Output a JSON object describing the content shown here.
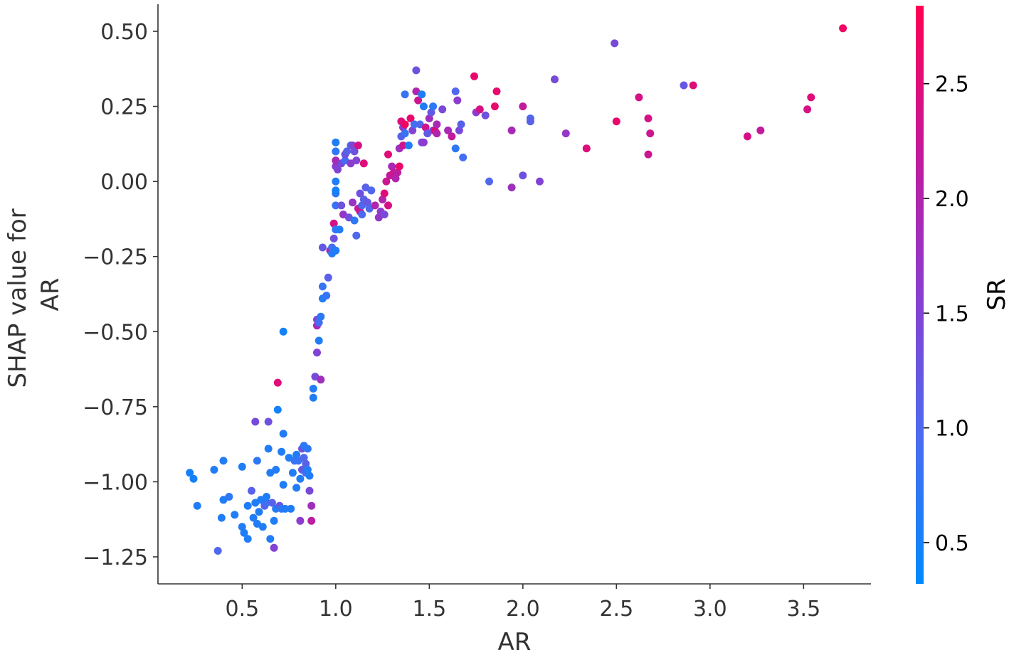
{
  "chart_data": {
    "type": "scatter",
    "xlabel": "AR",
    "ylabel": [
      "SHAP value for",
      "AR"
    ],
    "xlim": [
      0.05,
      3.86
    ],
    "ylim": [
      -1.34,
      0.59
    ],
    "xticks": [
      "0.5",
      "1.0",
      "1.5",
      "2.0",
      "2.5",
      "3.0",
      "3.5"
    ],
    "xtick_values": [
      0.5,
      1.0,
      1.5,
      2.0,
      2.5,
      3.0,
      3.5
    ],
    "yticks": [
      "0.50",
      "0.25",
      "0.00",
      "−0.25",
      "−0.50",
      "−0.75",
      "−1.00",
      "−1.25"
    ],
    "ytick_values": [
      0.5,
      0.25,
      0.0,
      -0.25,
      -0.5,
      -0.75,
      -1.0,
      -1.25
    ],
    "grid": false,
    "colorbar": {
      "label": "SR",
      "range": [
        0.32,
        2.84
      ],
      "ticks": [
        "0.5",
        "1.0",
        "1.5",
        "2.0",
        "2.5"
      ],
      "tick_values": [
        0.5,
        1.0,
        1.5,
        2.0,
        2.5
      ],
      "colors": [
        "#008afb",
        "#4a6cf0",
        "#8a3dd0",
        "#c4189a",
        "#ff0052"
      ]
    },
    "points": [
      [
        0.22,
        -0.97,
        0.5
      ],
      [
        0.24,
        -0.99,
        0.5
      ],
      [
        0.26,
        -1.08,
        0.6
      ],
      [
        0.35,
        -0.96,
        0.6
      ],
      [
        0.37,
        -1.23,
        1.0
      ],
      [
        0.39,
        -1.12,
        0.6
      ],
      [
        0.4,
        -0.93,
        0.6
      ],
      [
        0.4,
        -1.06,
        0.6
      ],
      [
        0.43,
        -1.05,
        0.7
      ],
      [
        0.46,
        -1.11,
        0.6
      ],
      [
        0.5,
        -0.95,
        0.6
      ],
      [
        0.5,
        -1.15,
        0.6
      ],
      [
        0.51,
        -1.17,
        0.6
      ],
      [
        0.53,
        -1.19,
        0.6
      ],
      [
        0.53,
        -1.08,
        0.6
      ],
      [
        0.55,
        -1.03,
        1.1
      ],
      [
        0.56,
        -1.12,
        0.6
      ],
      [
        0.57,
        -1.07,
        0.6
      ],
      [
        0.57,
        -0.8,
        1.4
      ],
      [
        0.58,
        -0.93,
        0.7
      ],
      [
        0.58,
        -1.14,
        0.6
      ],
      [
        0.59,
        -1.1,
        0.6
      ],
      [
        0.6,
        -1.06,
        0.6
      ],
      [
        0.61,
        -1.15,
        0.6
      ],
      [
        0.62,
        -1.08,
        1.1
      ],
      [
        0.63,
        -1.07,
        0.8
      ],
      [
        0.63,
        -1.05,
        0.6
      ],
      [
        0.64,
        -0.8,
        1.3
      ],
      [
        0.64,
        -0.89,
        0.6
      ],
      [
        0.65,
        -0.97,
        0.6
      ],
      [
        0.65,
        -1.19,
        0.6
      ],
      [
        0.66,
        -1.07,
        1.1
      ],
      [
        0.67,
        -1.22,
        1.5
      ],
      [
        0.67,
        -1.13,
        0.6
      ],
      [
        0.68,
        -1.09,
        0.6
      ],
      [
        0.68,
        -0.96,
        0.6
      ],
      [
        0.69,
        -0.67,
        2.5
      ],
      [
        0.69,
        -0.76,
        0.5
      ],
      [
        0.7,
        -1.08,
        1.2
      ],
      [
        0.71,
        -1.09,
        0.7
      ],
      [
        0.71,
        -0.9,
        0.6
      ],
      [
        0.72,
        -0.84,
        0.6
      ],
      [
        0.72,
        -0.5,
        0.5
      ],
      [
        0.72,
        -1.01,
        0.6
      ],
      [
        0.73,
        -1.09,
        0.6
      ],
      [
        0.75,
        -0.92,
        0.6
      ],
      [
        0.76,
        -1.09,
        0.6
      ],
      [
        0.77,
        -0.97,
        0.6
      ],
      [
        0.78,
        -0.93,
        0.8
      ],
      [
        0.79,
        -0.91,
        0.6
      ],
      [
        0.79,
        -1.02,
        0.6
      ],
      [
        0.8,
        -0.93,
        0.8
      ],
      [
        0.81,
        -1.13,
        1.6
      ],
      [
        0.81,
        -0.99,
        0.6
      ],
      [
        0.82,
        -0.96,
        1.2
      ],
      [
        0.82,
        -0.89,
        1.3
      ],
      [
        0.83,
        -0.92,
        1.0
      ],
      [
        0.83,
        -0.88,
        0.7
      ],
      [
        0.84,
        -0.94,
        1.1
      ],
      [
        0.84,
        -0.97,
        0.9
      ],
      [
        0.85,
        -0.96,
        0.6
      ],
      [
        0.85,
        -0.89,
        0.7
      ],
      [
        0.86,
        -1.03,
        1.4
      ],
      [
        0.86,
        -0.98,
        0.6
      ],
      [
        0.87,
        -1.08,
        1.8
      ],
      [
        0.87,
        -1.13,
        2.1
      ],
      [
        0.88,
        -0.72,
        0.6
      ],
      [
        0.88,
        -0.69,
        0.6
      ],
      [
        0.89,
        -0.65,
        1.4
      ],
      [
        0.9,
        -0.57,
        1.5
      ],
      [
        0.9,
        -0.46,
        1.4
      ],
      [
        0.9,
        -0.48,
        1.9
      ],
      [
        0.91,
        -0.47,
        0.9
      ],
      [
        0.91,
        -0.53,
        0.6
      ],
      [
        0.92,
        -0.66,
        1.8
      ],
      [
        0.92,
        -0.45,
        0.7
      ],
      [
        0.93,
        -0.35,
        0.8
      ],
      [
        0.93,
        -0.39,
        0.6
      ],
      [
        0.93,
        -0.22,
        1.2
      ],
      [
        0.95,
        -0.38,
        0.8
      ],
      [
        0.96,
        -0.32,
        1.1
      ],
      [
        0.97,
        -0.23,
        2.0
      ],
      [
        0.98,
        -0.22,
        0.9
      ],
      [
        0.98,
        -0.24,
        0.6
      ],
      [
        0.99,
        -0.14,
        2.4
      ],
      [
        0.99,
        -0.19,
        1.3
      ],
      [
        1.0,
        -0.23,
        0.6
      ],
      [
        1.0,
        -0.16,
        0.7
      ],
      [
        1.0,
        -0.08,
        0.8
      ],
      [
        1.0,
        -0.04,
        0.7
      ],
      [
        1.0,
        -0.03,
        0.5
      ],
      [
        1.0,
        0.0,
        0.6
      ],
      [
        1.0,
        0.05,
        1.6
      ],
      [
        1.0,
        0.07,
        1.9
      ],
      [
        1.0,
        0.1,
        0.7
      ],
      [
        1.0,
        0.13,
        0.6
      ],
      [
        1.01,
        0.04,
        1.5
      ],
      [
        1.02,
        -0.16,
        0.6
      ],
      [
        1.03,
        -0.08,
        1.3
      ],
      [
        1.03,
        0.06,
        1.4
      ],
      [
        1.04,
        -0.11,
        1.7
      ],
      [
        1.05,
        0.07,
        0.9
      ],
      [
        1.05,
        0.09,
        1.3
      ],
      [
        1.06,
        0.1,
        1.1
      ],
      [
        1.07,
        -0.12,
        1.3
      ],
      [
        1.08,
        0.06,
        1.6
      ],
      [
        1.08,
        0.12,
        1.0
      ],
      [
        1.09,
        0.12,
        1.5
      ],
      [
        1.09,
        -0.07,
        1.7
      ],
      [
        1.1,
        0.1,
        1.3
      ],
      [
        1.1,
        -0.13,
        0.7
      ],
      [
        1.11,
        0.07,
        1.5
      ],
      [
        1.11,
        -0.18,
        1.0
      ],
      [
        1.12,
        -0.09,
        2.2
      ],
      [
        1.12,
        0.12,
        2.4
      ],
      [
        1.13,
        -0.1,
        2.3
      ],
      [
        1.13,
        -0.04,
        1.3
      ],
      [
        1.14,
        -0.08,
        1.0
      ],
      [
        1.14,
        -0.11,
        1.0
      ],
      [
        1.15,
        0.06,
        2.5
      ],
      [
        1.15,
        -0.06,
        1.1
      ],
      [
        1.16,
        -0.02,
        1.1
      ],
      [
        1.17,
        -0.07,
        1.2
      ],
      [
        1.18,
        -0.09,
        1.0
      ],
      [
        1.19,
        -0.03,
        1.0
      ],
      [
        1.21,
        -0.08,
        2.0
      ],
      [
        1.23,
        -0.12,
        1.7
      ],
      [
        1.24,
        -0.1,
        1.6
      ],
      [
        1.25,
        -0.06,
        2.0
      ],
      [
        1.26,
        -0.04,
        2.5
      ],
      [
        1.26,
        -0.11,
        1.4
      ],
      [
        1.27,
        0.0,
        2.3
      ],
      [
        1.28,
        -0.08,
        2.4
      ],
      [
        1.28,
        0.09,
        2.5
      ],
      [
        1.29,
        0.02,
        2.2
      ],
      [
        1.3,
        0.05,
        1.9
      ],
      [
        1.31,
        0.03,
        2.3
      ],
      [
        1.32,
        0.01,
        2.0
      ],
      [
        1.33,
        0.03,
        2.1
      ],
      [
        1.34,
        0.05,
        2.6
      ],
      [
        1.34,
        0.11,
        1.8
      ],
      [
        1.35,
        0.2,
        2.5
      ],
      [
        1.35,
        0.15,
        1.1
      ],
      [
        1.36,
        0.18,
        1.6
      ],
      [
        1.36,
        0.12,
        2.3
      ],
      [
        1.37,
        0.16,
        0.8
      ],
      [
        1.37,
        0.19,
        2.7
      ],
      [
        1.37,
        0.29,
        0.8
      ],
      [
        1.39,
        0.12,
        0.6
      ],
      [
        1.4,
        0.21,
        2.6
      ],
      [
        1.41,
        0.17,
        1.5
      ],
      [
        1.42,
        0.19,
        0.9
      ],
      [
        1.43,
        0.3,
        2.0
      ],
      [
        1.43,
        0.37,
        1.3
      ],
      [
        1.44,
        0.27,
        2.3
      ],
      [
        1.45,
        0.19,
        1.0
      ],
      [
        1.46,
        0.13,
        1.4
      ],
      [
        1.46,
        0.29,
        0.6
      ],
      [
        1.47,
        0.25,
        0.6
      ],
      [
        1.47,
        0.13,
        1.6
      ],
      [
        1.48,
        0.18,
        2.3
      ],
      [
        1.49,
        0.16,
        1.2
      ],
      [
        1.5,
        0.21,
        1.8
      ],
      [
        1.51,
        0.23,
        1.2
      ],
      [
        1.52,
        0.25,
        0.7
      ],
      [
        1.52,
        0.17,
        1.4
      ],
      [
        1.53,
        0.17,
        2.5
      ],
      [
        1.54,
        0.16,
        2.0
      ],
      [
        1.54,
        0.19,
        1.9
      ],
      [
        1.57,
        0.24,
        1.4
      ],
      [
        1.6,
        0.17,
        1.9
      ],
      [
        1.62,
        0.15,
        2.2
      ],
      [
        1.64,
        0.3,
        1.0
      ],
      [
        1.64,
        0.11,
        0.7
      ],
      [
        1.65,
        0.27,
        1.6
      ],
      [
        1.66,
        0.17,
        1.4
      ],
      [
        1.67,
        0.19,
        1.1
      ],
      [
        1.68,
        0.08,
        0.9
      ],
      [
        1.74,
        0.35,
        2.6
      ],
      [
        1.75,
        0.23,
        1.6
      ],
      [
        1.77,
        0.24,
        2.4
      ],
      [
        1.8,
        0.22,
        1.3
      ],
      [
        1.82,
        0.0,
        1.0
      ],
      [
        1.85,
        0.25,
        2.6
      ],
      [
        1.86,
        0.3,
        2.6
      ],
      [
        1.94,
        0.17,
        1.9
      ],
      [
        1.94,
        -0.02,
        1.8
      ],
      [
        2.0,
        0.25,
        2.2
      ],
      [
        2.0,
        0.02,
        1.3
      ],
      [
        2.04,
        0.21,
        1.0
      ],
      [
        2.04,
        0.2,
        1.1
      ],
      [
        2.09,
        0.0,
        1.5
      ],
      [
        2.17,
        0.34,
        1.4
      ],
      [
        2.23,
        0.16,
        1.7
      ],
      [
        2.34,
        0.11,
        2.5
      ],
      [
        2.49,
        0.46,
        1.4
      ],
      [
        2.5,
        0.2,
        2.6
      ],
      [
        2.62,
        0.28,
        2.4
      ],
      [
        2.67,
        0.21,
        2.4
      ],
      [
        2.67,
        0.09,
        2.3
      ],
      [
        2.68,
        0.16,
        2.3
      ],
      [
        2.86,
        0.32,
        1.2
      ],
      [
        2.91,
        0.32,
        2.5
      ],
      [
        3.2,
        0.15,
        2.4
      ],
      [
        3.27,
        0.17,
        2.2
      ],
      [
        3.52,
        0.24,
        2.4
      ],
      [
        3.54,
        0.28,
        2.5
      ],
      [
        3.71,
        0.51,
        2.7
      ]
    ]
  }
}
